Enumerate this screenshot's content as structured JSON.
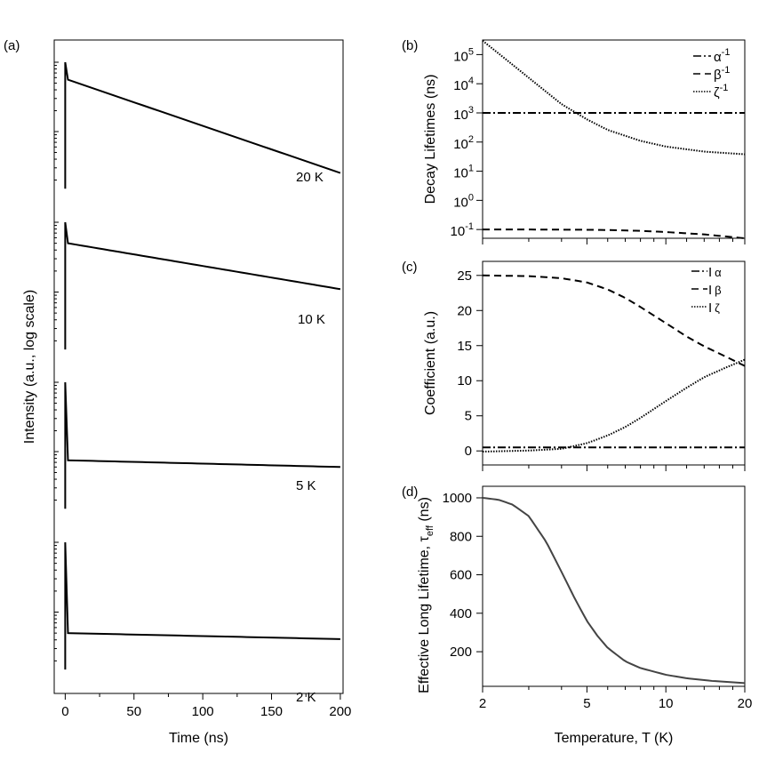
{
  "chart_data": [
    {
      "id": "a",
      "panel_label": "(a)",
      "type": "line",
      "title": "",
      "xlabel": "Time (ns)",
      "ylabel": "Intensity (a.u., log scale)",
      "xlim": [
        -8,
        202
      ],
      "xticks": [
        0,
        50,
        100,
        150,
        200
      ],
      "yscale": "log (stacked, offset traces)",
      "series": [
        {
          "name": "20 K",
          "label": "20 K",
          "peak": 1.0,
          "shoulder_at_2ns": 0.56,
          "end_at_200ns": 0.0253,
          "baseline": 0.015
        },
        {
          "name": "10 K",
          "label": "10 K",
          "peak": 1.0,
          "shoulder_at_2ns": 0.5,
          "end_at_200ns": 0.11,
          "baseline": 0.015
        },
        {
          "name": "5 K",
          "label": "5 K",
          "peak": 1.0,
          "shoulder_at_2ns": 0.075,
          "end_at_200ns": 0.06,
          "baseline": 0.015
        },
        {
          "name": "2 K",
          "label": "2 K",
          "peak": 1.0,
          "shoulder_at_2ns": 0.05,
          "end_at_200ns": 0.041,
          "baseline": 0.015
        }
      ]
    },
    {
      "id": "b",
      "panel_label": "(b)",
      "type": "line",
      "xlabel": "",
      "ylabel": "Decay Lifetimes (ns)",
      "xscale": "log",
      "yscale": "log",
      "xlim": [
        2,
        20
      ],
      "ylim_exp": [
        -1.3,
        5.5
      ],
      "yticks": [
        {
          "base": "10",
          "exp": "5",
          "value": 100000
        },
        {
          "base": "10",
          "exp": "4",
          "value": 10000
        },
        {
          "base": "10",
          "exp": "3",
          "value": 1000
        },
        {
          "base": "10",
          "exp": "2",
          "value": 100
        },
        {
          "base": "10",
          "exp": "1",
          "value": 10
        },
        {
          "base": "10",
          "exp": "0",
          "value": 1
        },
        {
          "base": "10",
          "exp": "-1",
          "value": 0.1
        }
      ],
      "legend_position": "top-right",
      "series": [
        {
          "name": "alpha^-1",
          "sym": "α",
          "sup": "-1",
          "style": "dash-dot",
          "T": [
            2,
            20
          ],
          "values": [
            1000,
            1000
          ]
        },
        {
          "name": "beta^-1",
          "sym": "β",
          "sup": "-1",
          "style": "dashed",
          "T": [
            2,
            3,
            4,
            5,
            6,
            8,
            10,
            14,
            20
          ],
          "values": [
            0.1,
            0.1,
            0.099,
            0.098,
            0.096,
            0.09,
            0.082,
            0.068,
            0.05
          ]
        },
        {
          "name": "zeta^-1",
          "sym": "ζ",
          "sup": "-1",
          "style": "dotted",
          "T": [
            2,
            2.5,
            3,
            4,
            5,
            6,
            8,
            10,
            14,
            20
          ],
          "values": [
            300000,
            60000,
            16000,
            2000,
            600,
            260,
            110,
            70,
            47,
            38
          ]
        }
      ]
    },
    {
      "id": "c",
      "panel_label": "(c)",
      "type": "line",
      "xlabel": "",
      "ylabel": "Coefficient (a.u.)",
      "xscale": "log",
      "xlim": [
        2,
        20
      ],
      "ylim": [
        -2,
        27
      ],
      "yticks": [
        0,
        5,
        10,
        15,
        20,
        25
      ],
      "legend_position": "top-right",
      "series": [
        {
          "name": "I_alpha",
          "prefix": "I",
          "sub": "α",
          "style": "dash-dot",
          "T": [
            2,
            20
          ],
          "values": [
            0.5,
            0.5
          ]
        },
        {
          "name": "I_beta",
          "prefix": "I",
          "sub": "β",
          "style": "dashed",
          "T": [
            2,
            3,
            4,
            5,
            6,
            7,
            8,
            10,
            12,
            14,
            17,
            20
          ],
          "values": [
            25,
            24.9,
            24.6,
            24,
            23,
            21.8,
            20.5,
            18.2,
            16.3,
            14.9,
            13.4,
            12.1
          ]
        },
        {
          "name": "I_zeta",
          "prefix": "I",
          "sub": "ζ",
          "style": "dotted",
          "T": [
            2,
            3,
            4,
            5,
            6,
            7,
            8,
            10,
            12,
            14,
            17,
            20
          ],
          "values": [
            -0.1,
            0.05,
            0.3,
            1.1,
            2.2,
            3.4,
            4.7,
            7.1,
            9.0,
            10.5,
            11.9,
            13.0
          ]
        }
      ]
    },
    {
      "id": "d",
      "panel_label": "(d)",
      "type": "line",
      "xlabel": "Temperature, T (K)",
      "ylabel": "Effective Long Lifetime, τ",
      "ylabel_sub": "eff",
      "ylabel_unit": "(ns)",
      "xscale": "log",
      "xlim": [
        2,
        20
      ],
      "xticks": [
        2,
        5,
        10,
        20
      ],
      "ylim": [
        20,
        1060
      ],
      "yticks": [
        200,
        400,
        600,
        800,
        1000
      ],
      "series": [
        {
          "name": "tau_eff",
          "T": [
            2,
            2.3,
            2.6,
            3,
            3.5,
            4,
            4.5,
            5,
            5.5,
            6,
            7,
            8,
            10,
            12,
            15,
            20
          ],
          "values": [
            1000,
            990,
            965,
            905,
            770,
            615,
            475,
            360,
            280,
            220,
            150,
            115,
            80,
            62,
            48,
            37
          ]
        }
      ]
    }
  ]
}
